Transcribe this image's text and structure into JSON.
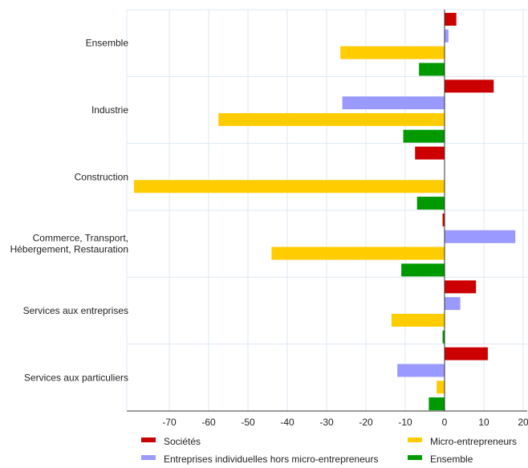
{
  "chart_data": {
    "type": "bar",
    "orientation": "horizontal",
    "categories": [
      "Ensemble",
      "Industrie",
      "Construction",
      [
        "Commerce, Transport,",
        "Hébergement, Restauration"
      ],
      "Services aux entreprises",
      "Services aux particuliers"
    ],
    "series": [
      {
        "name": "Sociétés",
        "color": "#cc0000",
        "values": [
          3,
          12.5,
          -7.5,
          -0.5,
          8,
          11
        ]
      },
      {
        "name": "Entreprises individuelles hors micro-entrepreneurs",
        "color": "#9999ff",
        "values": [
          1,
          -26,
          null,
          18,
          4,
          -12
        ]
      },
      {
        "name": "Micro-entrepreneurs",
        "color": "#ffcc00",
        "values": [
          -26.5,
          -57.5,
          -79,
          -44,
          -13.5,
          -2
        ]
      },
      {
        "name": "Ensemble",
        "color": "#009900",
        "values": [
          -6.5,
          -10.5,
          -7,
          -11,
          -0.5,
          -4
        ]
      }
    ],
    "xlim": [
      -80,
      20
    ],
    "xticks": [
      -70,
      -60,
      -50,
      -40,
      -30,
      -20,
      -10,
      0,
      10,
      20
    ],
    "grid": true,
    "legend_position": "bottom"
  }
}
